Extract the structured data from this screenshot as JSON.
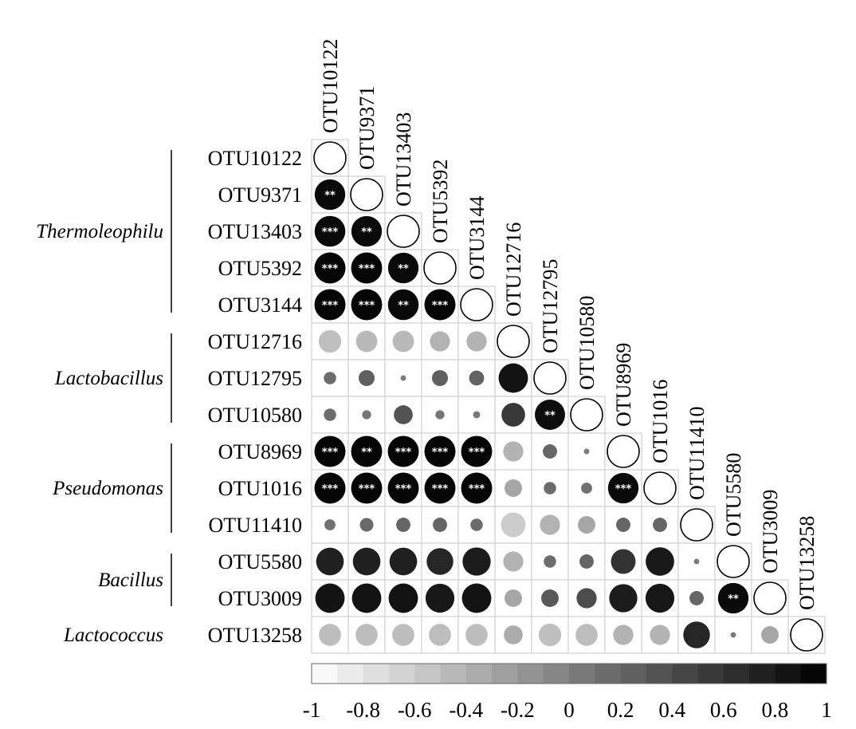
{
  "chart_data": {
    "type": "heatmap",
    "variables": [
      "OTU10122",
      "OTU9371",
      "OTU13403",
      "OTU5392",
      "OTU3144",
      "OTU12716",
      "OTU12795",
      "OTU10580",
      "OTU8969",
      "OTU1016",
      "OTU11410",
      "OTU5580",
      "OTU3009",
      "OTU13258"
    ],
    "groups": [
      {
        "name": "Thermoleophilu",
        "first": 0,
        "last": 4
      },
      {
        "name": "Lactobacillus",
        "first": 5,
        "last": 7
      },
      {
        "name": "Pseudomonas",
        "first": 8,
        "last": 10
      },
      {
        "name": "Bacillus",
        "first": 11,
        "last": 12
      },
      {
        "name": "Lactococcus",
        "first": 13,
        "last": 13
      }
    ],
    "correlation": [
      [
        1
      ],
      [
        0.92,
        1
      ],
      [
        0.93,
        0.92,
        1
      ],
      [
        0.95,
        0.95,
        0.92,
        1
      ],
      [
        0.95,
        0.95,
        0.93,
        0.95,
        1
      ],
      [
        -0.5,
        -0.45,
        -0.45,
        -0.4,
        -0.4,
        1
      ],
      [
        0.15,
        0.25,
        0.03,
        0.25,
        0.22,
        0.85,
        1
      ],
      [
        0.15,
        0.08,
        0.35,
        0.08,
        0.05,
        0.55,
        0.9,
        1
      ],
      [
        0.95,
        0.95,
        0.95,
        0.95,
        0.95,
        -0.4,
        0.2,
        0.03,
        1
      ],
      [
        0.95,
        0.95,
        0.95,
        0.95,
        0.95,
        -0.3,
        0.15,
        0.12,
        0.92,
        1
      ],
      [
        0.12,
        0.18,
        0.2,
        0.2,
        0.15,
        -0.6,
        -0.4,
        -0.3,
        0.2,
        0.2,
        1
      ],
      [
        0.75,
        0.75,
        0.75,
        0.7,
        0.78,
        -0.4,
        0.15,
        0.2,
        0.6,
        0.8,
        0.03,
        1
      ],
      [
        0.85,
        0.85,
        0.85,
        0.82,
        0.85,
        -0.3,
        0.3,
        0.4,
        0.78,
        0.82,
        0.2,
        0.92,
        1
      ],
      [
        -0.48,
        -0.48,
        -0.48,
        -0.48,
        -0.48,
        -0.35,
        -0.5,
        -0.48,
        -0.4,
        -0.4,
        0.7,
        0.03,
        -0.3,
        1
      ]
    ],
    "significance": [
      [
        ""
      ],
      [
        "**",
        ""
      ],
      [
        "***",
        "**",
        ""
      ],
      [
        "***",
        "***",
        "**",
        ""
      ],
      [
        "***",
        "***",
        "**",
        "***",
        ""
      ],
      [
        "",
        "",
        "",
        "",
        "",
        ""
      ],
      [
        "",
        "",
        "",
        "",
        "",
        "",
        ""
      ],
      [
        "",
        "",
        "",
        "",
        "",
        "",
        "**",
        ""
      ],
      [
        "***",
        "**",
        "***",
        "***",
        "***",
        "",
        "",
        "",
        ""
      ],
      [
        "***",
        "***",
        "***",
        "***",
        "***",
        "",
        "",
        "",
        "***",
        ""
      ],
      [
        "",
        "",
        "",
        "",
        "",
        "",
        "",
        "",
        "",
        "",
        ""
      ],
      [
        "",
        "",
        "",
        "",
        "",
        "",
        "",
        "",
        "",
        "",
        "",
        ""
      ],
      [
        "",
        "",
        "",
        "",
        "",
        "",
        "",
        "",
        "",
        "",
        "",
        "**",
        ""
      ],
      [
        "",
        "",
        "",
        "",
        "",
        "",
        "",
        "",
        "",
        "",
        "",
        "",
        "",
        ""
      ]
    ],
    "colorbar": {
      "ticks": [
        "-1",
        "-0.8",
        "-0.6",
        "-0.4",
        "-0.2",
        "0",
        "0.2",
        "0.4",
        "0.6",
        "0.8",
        "1"
      ],
      "range": [
        -1,
        1
      ]
    }
  }
}
